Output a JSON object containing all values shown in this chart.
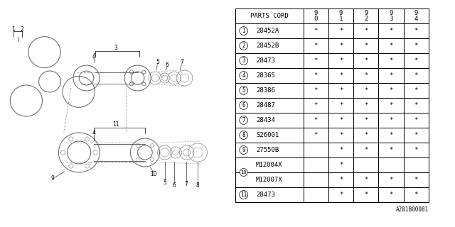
{
  "bg_color": "#ffffff",
  "line_color": "#000000",
  "text_color": "#000000",
  "watermark": "A281B00081",
  "table": {
    "header": [
      "PARTS CORD",
      "9\n0",
      "9\n1",
      "9\n2",
      "9\n3",
      "9\n4"
    ],
    "rows": [
      {
        "num": "1",
        "part": "28452A",
        "cols": [
          "*",
          "*",
          "*",
          "*",
          "*"
        ],
        "span": false
      },
      {
        "num": "2",
        "part": "28452B",
        "cols": [
          "*",
          "*",
          "*",
          "*",
          "*"
        ],
        "span": false
      },
      {
        "num": "3",
        "part": "28473",
        "cols": [
          "*",
          "*",
          "*",
          "*",
          "*"
        ],
        "span": false
      },
      {
        "num": "4",
        "part": "28365",
        "cols": [
          "*",
          "*",
          "*",
          "*",
          "*"
        ],
        "span": false
      },
      {
        "num": "5",
        "part": "28386",
        "cols": [
          "*",
          "*",
          "*",
          "*",
          "*"
        ],
        "span": false
      },
      {
        "num": "6",
        "part": "28487",
        "cols": [
          "*",
          "*",
          "*",
          "*",
          "*"
        ],
        "span": false
      },
      {
        "num": "7",
        "part": "28434",
        "cols": [
          "*",
          "*",
          "*",
          "*",
          "*"
        ],
        "span": false
      },
      {
        "num": "8",
        "part": "S26001",
        "cols": [
          "*",
          "*",
          "*",
          "*",
          "*"
        ],
        "span": false
      },
      {
        "num": "9",
        "part": "27550B",
        "cols": [
          "",
          "*",
          "*",
          "*",
          "*"
        ],
        "span": false
      },
      {
        "num": "10",
        "part": "M12004X",
        "cols": [
          "",
          "*",
          "",
          "",
          ""
        ],
        "span": true
      },
      {
        "num": "",
        "part": "M12007X",
        "cols": [
          "",
          "*",
          "*",
          "*",
          "*"
        ],
        "span": true
      },
      {
        "num": "11",
        "part": "28473",
        "cols": [
          "",
          "*",
          "*",
          "*",
          "*"
        ],
        "span": false
      }
    ]
  }
}
